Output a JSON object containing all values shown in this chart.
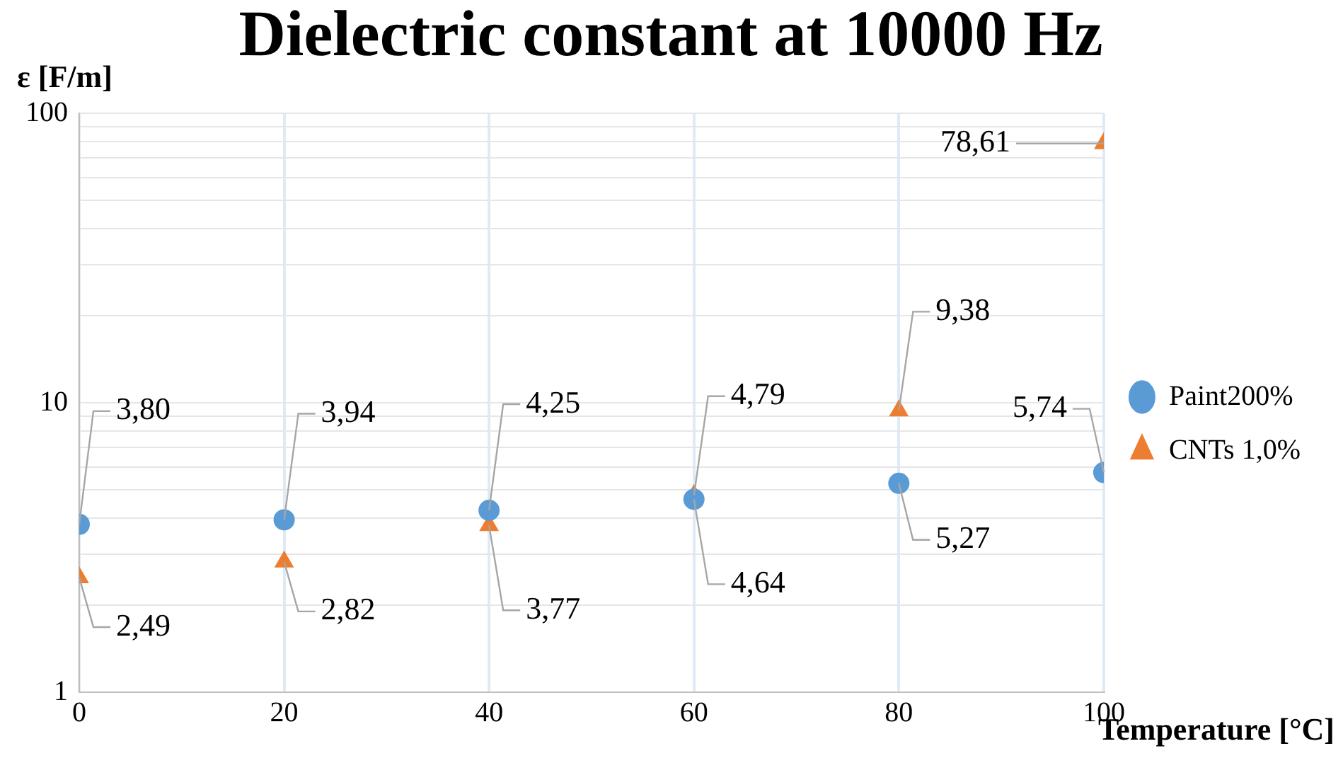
{
  "chart_data": {
    "type": "scatter",
    "title": "Dielectric constant at 10000 Hz",
    "xlabel": "Temperature [°C]",
    "ylabel": "ε [F/m]",
    "x": [
      0,
      20,
      40,
      60,
      80,
      100
    ],
    "series": [
      {
        "name": "Paint200%",
        "color": "#5b9bd5",
        "marker": "circle",
        "values": [
          3.8,
          3.94,
          4.25,
          4.64,
          5.27,
          5.74
        ],
        "value_labels": [
          "3,80",
          "3,94",
          "4,25",
          "4,64",
          "5,27",
          "5,74"
        ]
      },
      {
        "name": "CNTs 1,0%",
        "color": "#ed7d31",
        "marker": "triangle",
        "values": [
          2.49,
          2.82,
          3.77,
          4.79,
          9.38,
          78.61
        ],
        "value_labels": [
          "2,49",
          "2,82",
          "3,77",
          "4,79",
          "9,38",
          "78,61"
        ]
      }
    ],
    "log": "y",
    "xlim": [
      0,
      100
    ],
    "xticks": [
      0,
      20,
      40,
      60,
      80,
      100
    ],
    "ylim": [
      1,
      100
    ],
    "yticks": [
      1,
      {
        "value": 2,
        "label": null
      },
      {
        "value": 3,
        "label": null
      },
      {
        "value": 4,
        "label": null
      },
      {
        "value": 5,
        "label": null
      },
      {
        "value": 6,
        "label": null
      },
      {
        "value": 7,
        "label": null
      },
      {
        "value": 8,
        "label": null
      },
      {
        "value": 9,
        "label": null
      },
      10,
      {
        "value": 20,
        "label": null
      },
      {
        "value": 30,
        "label": null
      },
      {
        "value": 40,
        "label": null
      },
      {
        "value": 50,
        "label": null
      },
      {
        "value": 60,
        "label": null
      },
      {
        "value": 70,
        "label": null
      },
      {
        "value": 80,
        "label": null
      },
      {
        "value": 90,
        "label": null
      },
      100
    ],
    "grid": true,
    "legend": "right"
  }
}
